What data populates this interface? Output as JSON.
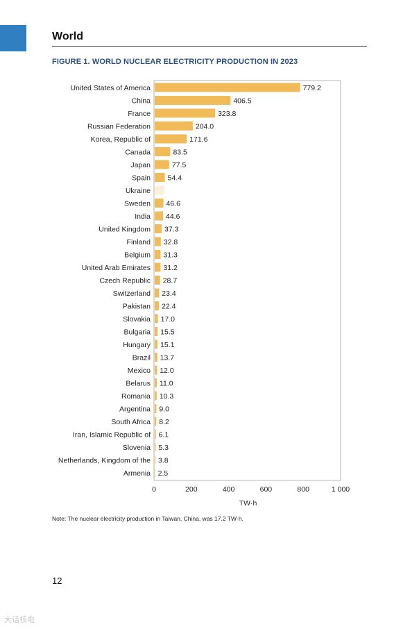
{
  "header": {
    "section_title": "World",
    "figure_title": "FIGURE 1. WORLD NUCLEAR ELECTRICITY PRODUCTION IN 2023",
    "accent_color": "#2f7fc1",
    "title_color": "#2a4e7a"
  },
  "chart_data": {
    "type": "bar",
    "orientation": "horizontal",
    "xlabel": "TW·h",
    "xlim": [
      0,
      1000
    ],
    "xticks": [
      0,
      200,
      400,
      600,
      800,
      1000
    ],
    "xtick_labels": [
      "0",
      "200",
      "400",
      "600",
      "800",
      "1 000"
    ],
    "grid": false,
    "bar_color": "#f2bb5a",
    "missing_bar_color": "#fbf0dc",
    "categories": [
      "United States of America",
      "China",
      "France",
      "Russian Federation",
      "Korea, Republic of",
      "Canada",
      "Japan",
      "Spain",
      "Ukraine",
      "Sweden",
      "India",
      "United Kingdom",
      "Finland",
      "Belgium",
      "United Arab Emirates",
      "Czech Republic",
      "Switzerland",
      "Pakistan",
      "Slovakia",
      "Bulgaria",
      "Hungary",
      "Brazil",
      "Mexico",
      "Belarus",
      "Romania",
      "Argentina",
      "South Africa",
      "Iran, Islamic Republic of",
      "Slovenia",
      "Netherlands, Kingdom of the",
      "Armenia"
    ],
    "values": [
      779.2,
      406.5,
      323.8,
      204.0,
      171.6,
      83.5,
      77.5,
      54.4,
      null,
      46.6,
      44.6,
      37.3,
      32.8,
      31.3,
      31.2,
      28.7,
      23.4,
      22.4,
      17.0,
      15.5,
      15.1,
      13.7,
      12.0,
      11.0,
      10.3,
      9.0,
      8.2,
      6.1,
      5.3,
      3.8,
      2.5
    ]
  },
  "note": "Note: The nuclear electricity production in Taiwan, China, was 17.2 TW·h.",
  "page_number": "12",
  "watermark": "大话核电"
}
